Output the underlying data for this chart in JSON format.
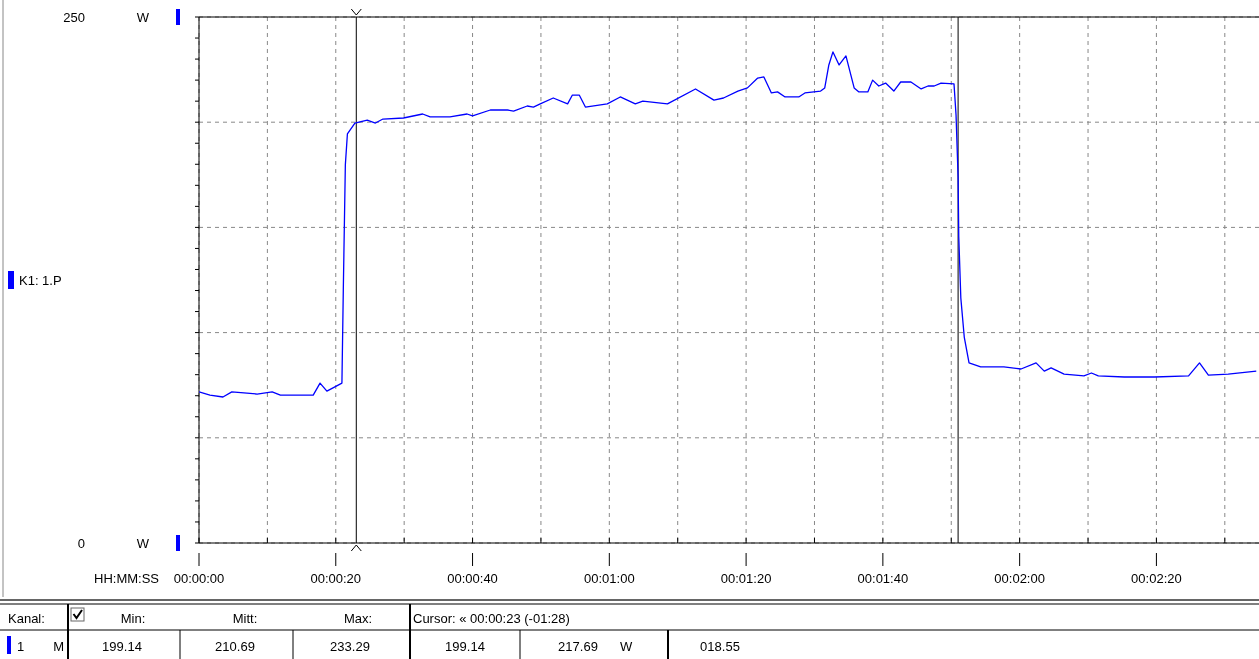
{
  "chart_data": {
    "type": "line",
    "xlabel": "HH:MM:SS",
    "legend": "left",
    "grid": true,
    "line_style": "solid",
    "marker": "none",
    "xlim": [
      0,
      155
    ],
    "ylim": [
      0,
      250
    ],
    "xticks": [
      {
        "value": 0,
        "label": "00:00:00"
      },
      {
        "value": 10,
        "label": null
      },
      {
        "value": 20,
        "label": "00:00:20"
      },
      {
        "value": 30,
        "label": null
      },
      {
        "value": 40,
        "label": "00:00:40"
      },
      {
        "value": 50,
        "label": null
      },
      {
        "value": 60,
        "label": "00:01:00"
      },
      {
        "value": 70,
        "label": null
      },
      {
        "value": 80,
        "label": "00:01:20"
      },
      {
        "value": 90,
        "label": null
      },
      {
        "value": 100,
        "label": "00:01:40"
      },
      {
        "value": 110,
        "label": null
      },
      {
        "value": 120,
        "label": "00:02:00"
      },
      {
        "value": 130,
        "label": null
      },
      {
        "value": 140,
        "label": "00:02:20"
      },
      {
        "value": 150,
        "label": null
      }
    ],
    "ylabel": "W",
    "yticks": [
      {
        "value": 0,
        "label": "0"
      },
      {
        "value": 50,
        "label": null
      },
      {
        "value": 100,
        "label": null
      },
      {
        "value": 150,
        "label": null
      },
      {
        "value": 200,
        "label": null
      },
      {
        "value": 250,
        "label": "250"
      }
    ],
    "ref_lines": [
      {
        "axis": "x",
        "value": 23,
        "color": "#000000"
      },
      {
        "axis": "x",
        "value": 111,
        "color": "#000000"
      }
    ],
    "series": [
      {
        "name": "K1: 1.P",
        "color": "#0000ff",
        "x": [
          0,
          1.6,
          3.5,
          4.8,
          8.5,
          10.7,
          11.9,
          16.7,
          17.7,
          18.7,
          20.9,
          21.1,
          21.4,
          21.7,
          22.8,
          24.6,
          25.8,
          26.9,
          29.9,
          32.7,
          33.8,
          36.7,
          39.2,
          40.0,
          42.6,
          45.1,
          46.0,
          48.0,
          48.9,
          49.9,
          51.8,
          53.9,
          54.6,
          55.6,
          56.5,
          59.7,
          61.6,
          63.8,
          64.9,
          68.5,
          72.6,
          75.3,
          76.7,
          78.8,
          80.2,
          81.7,
          82.6,
          83.7,
          84.6,
          85.7,
          87.7,
          88.6,
          90.9,
          91.5,
          92.1,
          92.7,
          93.6,
          94.6,
          95.8,
          96.5,
          97.8,
          98.5,
          99.4,
          100.4,
          101.6,
          102.6,
          104.1,
          105.6,
          106.6,
          107.5,
          108.5,
          110.4,
          110.7,
          111.0,
          111.1,
          111.4,
          111.9,
          112.6,
          114.3,
          117.7,
          120.2,
          122.4,
          123.6,
          124.6,
          126.5,
          129.4,
          130.5,
          131.5,
          135.3,
          139.7,
          144.7,
          146.3,
          147.6,
          150.5,
          154.6
        ],
        "values": [
          71.8,
          70.3,
          69.4,
          71.8,
          70.8,
          71.8,
          70.3,
          70.3,
          76.0,
          72.2,
          76.0,
          120,
          179.7,
          194.4,
          199.6,
          201,
          199.6,
          201.5,
          202,
          203.9,
          202.5,
          202.5,
          203.9,
          203,
          205.8,
          205.8,
          205.3,
          207.7,
          207.2,
          208.7,
          211.5,
          208.7,
          212.9,
          212.9,
          207.2,
          208.7,
          212,
          208.7,
          210,
          208.7,
          215.8,
          210.5,
          211.5,
          214.8,
          216.3,
          221,
          221.5,
          213.9,
          214.4,
          212,
          212,
          213.9,
          214.8,
          216.3,
          227.2,
          233.4,
          227.2,
          231.5,
          216.3,
          214.4,
          214.4,
          220,
          217.2,
          218.6,
          214.8,
          219.1,
          219.1,
          215.8,
          217.2,
          217.2,
          218.6,
          218.2,
          203.4,
          174,
          145.4,
          116.4,
          97.9,
          85.6,
          83.7,
          83.7,
          82.7,
          85.6,
          81.7,
          83.2,
          80.3,
          79.4,
          80.8,
          79.4,
          78.9,
          78.9,
          79.4,
          85.6,
          79.8,
          80.3,
          81.7
        ]
      }
    ],
    "annotations": [
      "Kanal:",
      "Min:",
      "Mitt:",
      "Max:",
      "Cursor: « 00:00:23 (-01:28)",
      "1",
      "M",
      "199.14",
      "210.69",
      "233.29",
      "199.14",
      "217.69",
      "W",
      "018.55"
    ]
  }
}
